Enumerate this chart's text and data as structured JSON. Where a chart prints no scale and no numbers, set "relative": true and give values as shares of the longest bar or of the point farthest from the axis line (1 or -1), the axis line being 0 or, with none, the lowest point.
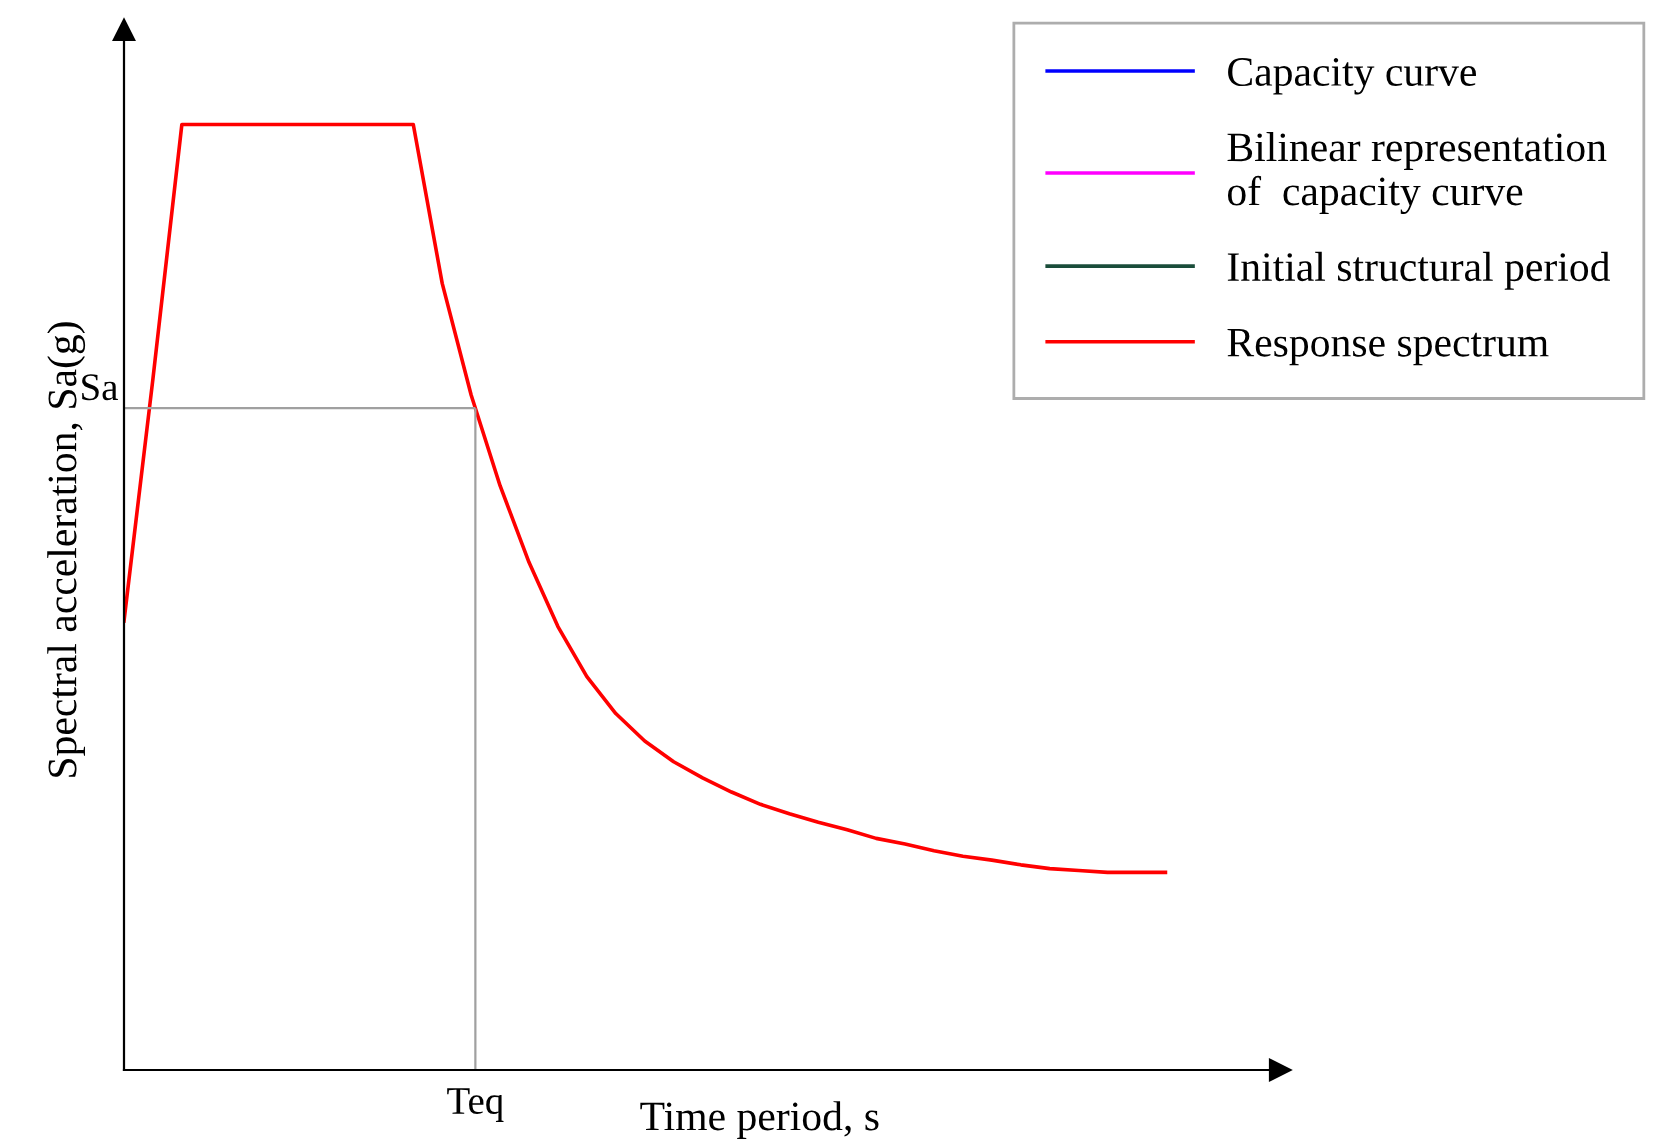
{
  "chart_data": {
    "type": "line",
    "relative": true,
    "xlabel": "Time period, s",
    "ylabel": "Spectral acceleration, Sa(g)",
    "annotations": [
      "Teq"
    ],
    "categories": [
      null,
      null,
      null,
      null,
      null,
      null,
      null,
      null,
      null,
      null,
      null,
      null,
      null,
      null,
      null,
      null,
      null,
      null,
      null,
      null,
      null,
      null,
      null,
      null,
      null,
      null,
      null,
      null,
      null,
      null,
      null,
      null,
      null,
      null,
      null,
      null,
      null
    ],
    "series": [
      {
        "name": "Capacity curve",
        "color": "#0000ff",
        "values": [
          null,
          null,
          null,
          null,
          null,
          null,
          null,
          null,
          null,
          null,
          null,
          null,
          null,
          null,
          null,
          null,
          null,
          null,
          null,
          null,
          null,
          null,
          null,
          null,
          null,
          null,
          null,
          null,
          null,
          null,
          null,
          null,
          null,
          null,
          null,
          null,
          null
        ]
      },
      {
        "name": "Bilinear representation\nof  capacity curve",
        "color": "#ff00ff",
        "values": [
          null,
          null,
          null,
          null,
          null,
          null,
          null,
          null,
          null,
          null,
          null,
          null,
          null,
          null,
          null,
          null,
          null,
          null,
          null,
          null,
          null,
          null,
          null,
          null,
          null,
          null,
          null,
          null,
          null,
          null,
          null,
          null,
          null,
          null,
          null,
          null,
          null
        ]
      },
      {
        "name": "Initial structural period",
        "color": "#1a4d3a",
        "values": [
          null,
          null,
          null,
          null,
          null,
          null,
          null,
          null,
          null,
          null,
          null,
          null,
          null,
          null,
          null,
          null,
          null,
          null,
          null,
          null,
          null,
          null,
          null,
          null,
          null,
          null,
          null,
          null,
          null,
          null,
          null,
          null,
          null,
          null,
          null,
          null,
          null
        ]
      },
      {
        "name": "Response spectrum",
        "color": "#ff0000",
        "values": [
          0.475,
          0.731,
          1,
          1,
          1,
          1,
          1,
          1,
          1,
          1,
          1,
          0.832,
          0.714,
          0.618,
          0.537,
          0.469,
          0.416,
          0.377,
          0.348,
          0.326,
          0.309,
          0.294,
          0.281,
          0.271,
          0.262,
          0.254,
          0.245,
          0.239,
          0.232,
          0.226,
          0.222,
          0.217,
          0.213,
          0.211,
          0.209,
          0.209,
          0.209
        ]
      }
    ],
    "ref_lines": [
      {
        "axis": "y",
        "value": 0.7,
        "label": "Sa",
        "color": "#a0a0a0"
      }
    ],
    "legend": "top right",
    "marker": "none",
    "line_style": "solid"
  }
}
